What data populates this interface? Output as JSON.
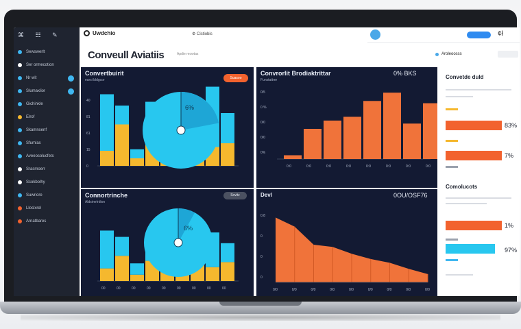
{
  "header": {
    "logo_text": "Uwdchio",
    "tab_label": "Cistiobis",
    "cta_label": "",
    "right_icon": "¢ł"
  },
  "subheader": {
    "title": "Conveull Aviatiis",
    "subtitle": "Apdie mowtas"
  },
  "sidebar": {
    "top_icons": [
      "⌘",
      "☷",
      "✎"
    ],
    "items": [
      {
        "label": "Sewswerlt",
        "dot": "#3fb7f0"
      },
      {
        "label": "Ser ormecotion",
        "dot": "#ffffff"
      },
      {
        "label": "Nr wit",
        "dot": "#3fb7f0"
      },
      {
        "label": "Slumaxlior",
        "dot": "#3fb7f0"
      },
      {
        "label": "Gichinkle",
        "dot": "#3fb7f0"
      },
      {
        "label": "Elrof",
        "dot": "#f5b82e"
      },
      {
        "label": "Skamnsenf",
        "dot": "#3fb7f0"
      },
      {
        "label": "Sfumlas",
        "dot": "#3fb7f0"
      },
      {
        "label": "Aveeosolucfets",
        "dot": "#3fb7f0"
      },
      {
        "label": "Srasmoerr",
        "dot": "#ffffff"
      },
      {
        "label": "Scokbolhy",
        "dot": "#ffffff"
      },
      {
        "label": "Suwriore",
        "dot": "#3fb7f0"
      },
      {
        "label": "Lloslxrel",
        "dot": "#f2622e"
      },
      {
        "label": "Arnatbares",
        "dot": "#f2622e"
      }
    ]
  },
  "panels": {
    "tl": {
      "title": "Convertbuirit",
      "subtitle": "eursi bldgcor",
      "badge": "Suasoo",
      "pie_label": "6%"
    },
    "tr": {
      "title": "Convrorlit Brodiaktrittar",
      "subtitle": "Funstattrer",
      "value": "0% BKS"
    },
    "bl": {
      "title": "Connortrinche",
      "subtitle": "Aldsirerlrdion",
      "badge": "Sovitz",
      "pie_label": "6%"
    },
    "br": {
      "title": "Devl",
      "value": "0OU/OSF76"
    }
  },
  "right_column": {
    "tag": "Aroleoosss",
    "card1_title": "Convetde duld",
    "card2_title": "Comolucots",
    "pct1": "83%",
    "pct2": "7%",
    "pct3": "1%",
    "pct4": "97%"
  },
  "chart_data": [
    {
      "type": "bar",
      "panel": "top-left",
      "series": [
        {
          "values": [
            0.75,
            0.25,
            0.12,
            0.35,
            0.12,
            0.3,
            0.12,
            0.8,
            0.4
          ]
        },
        {
          "values": [
            0.2,
            0.55,
            0.1,
            0.5,
            0.45,
            0.15,
            0.45,
            0.25,
            0.3
          ]
        }
      ],
      "pie": [
        0.22,
        0.78
      ]
    },
    {
      "type": "bar",
      "panel": "top-right",
      "values": [
        0.05,
        0.4,
        0.51,
        0.56,
        0.77,
        0.88,
        0.47,
        0.74
      ]
    },
    {
      "type": "bar",
      "panel": "bottom-left",
      "series": [
        {
          "values": [
            0.6,
            0.3,
            0.18,
            0.35,
            0.18,
            0.28,
            0.18,
            0.55,
            0.3
          ]
        },
        {
          "values": [
            0.2,
            0.4,
            0.1,
            0.32,
            0.4,
            0.14,
            0.38,
            0.22,
            0.3
          ]
        }
      ],
      "pie": [
        0.08,
        0.92
      ]
    },
    {
      "type": "area",
      "panel": "bottom-right",
      "values": [
        0.86,
        0.74,
        0.5,
        0.47,
        0.38,
        0.31,
        0.26,
        0.18,
        0.11
      ]
    }
  ]
}
